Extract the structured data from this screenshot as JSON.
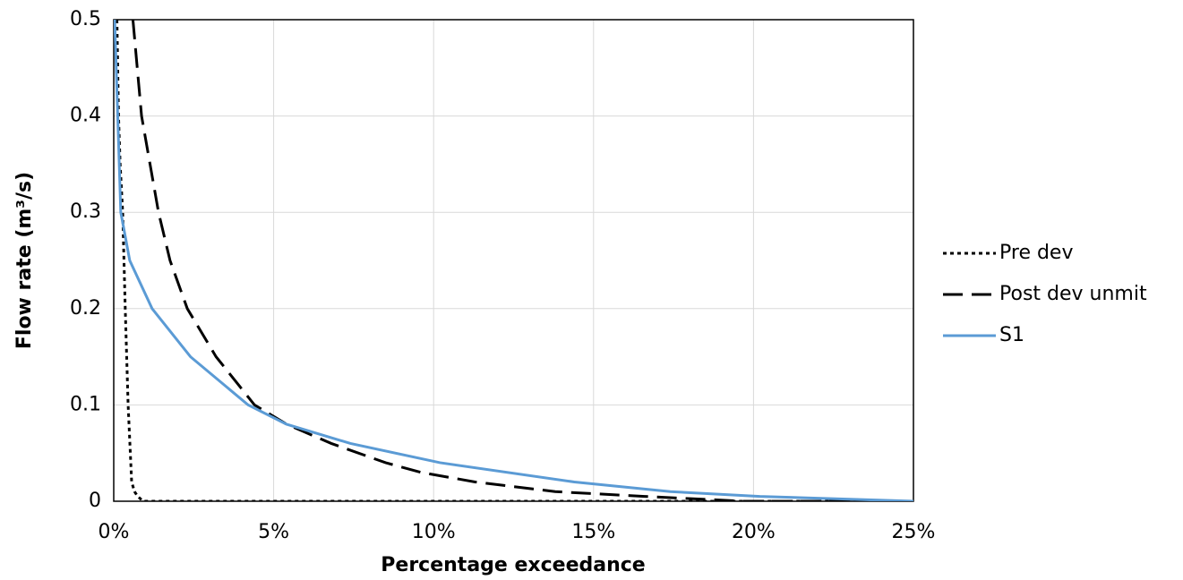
{
  "chart_data": {
    "type": "line",
    "xlabel": "Percentage exceedance",
    "ylabel": "Flow rate (m³/s)",
    "xlim": [
      0,
      25
    ],
    "xticks": [
      {
        "value": 0,
        "label": "0%"
      },
      {
        "value": 5,
        "label": "5%"
      },
      {
        "value": 10,
        "label": "10%"
      },
      {
        "value": 15,
        "label": "15%"
      },
      {
        "value": 20,
        "label": "20%"
      },
      {
        "value": 25,
        "label": "25%"
      }
    ],
    "ylim": [
      0,
      0.5
    ],
    "yticks": [
      0,
      0.1,
      0.2,
      0.3,
      0.4,
      0.5
    ],
    "grid": true,
    "legend": "right",
    "series": [
      {
        "name": "Pre dev",
        "color": "#000000",
        "dash": "dotted",
        "x": [
          0.1,
          0.15,
          0.2,
          0.28,
          0.36,
          0.45,
          0.56,
          0.65,
          0.75,
          0.92,
          25
        ],
        "values": [
          0.5,
          0.4,
          0.35,
          0.3,
          0.2,
          0.1,
          0.02,
          0.01,
          0.005,
          0,
          0
        ]
      },
      {
        "name": "Post dev unmit",
        "color": "#000000",
        "dash": "dashed",
        "x": [
          0.6,
          0.87,
          1.4,
          1.76,
          2.3,
          3.2,
          4.4,
          5.4,
          6.8,
          8.5,
          9.6,
          11.3,
          13.8,
          16.6,
          19.7,
          25
        ],
        "values": [
          0.5,
          0.4,
          0.3,
          0.25,
          0.2,
          0.15,
          0.1,
          0.08,
          0.06,
          0.04,
          0.03,
          0.02,
          0.01,
          0.005,
          0,
          0
        ]
      },
      {
        "name": "S1",
        "color": "#5b9bd5",
        "dash": "solid",
        "x": [
          0.03,
          0.22,
          0.5,
          1.2,
          2.4,
          4.2,
          5.4,
          7.4,
          10.2,
          14.4,
          17.4,
          20.2,
          25
        ],
        "values": [
          0.5,
          0.3,
          0.25,
          0.2,
          0.15,
          0.1,
          0.08,
          0.06,
          0.04,
          0.02,
          0.01,
          0.005,
          0
        ]
      }
    ]
  }
}
